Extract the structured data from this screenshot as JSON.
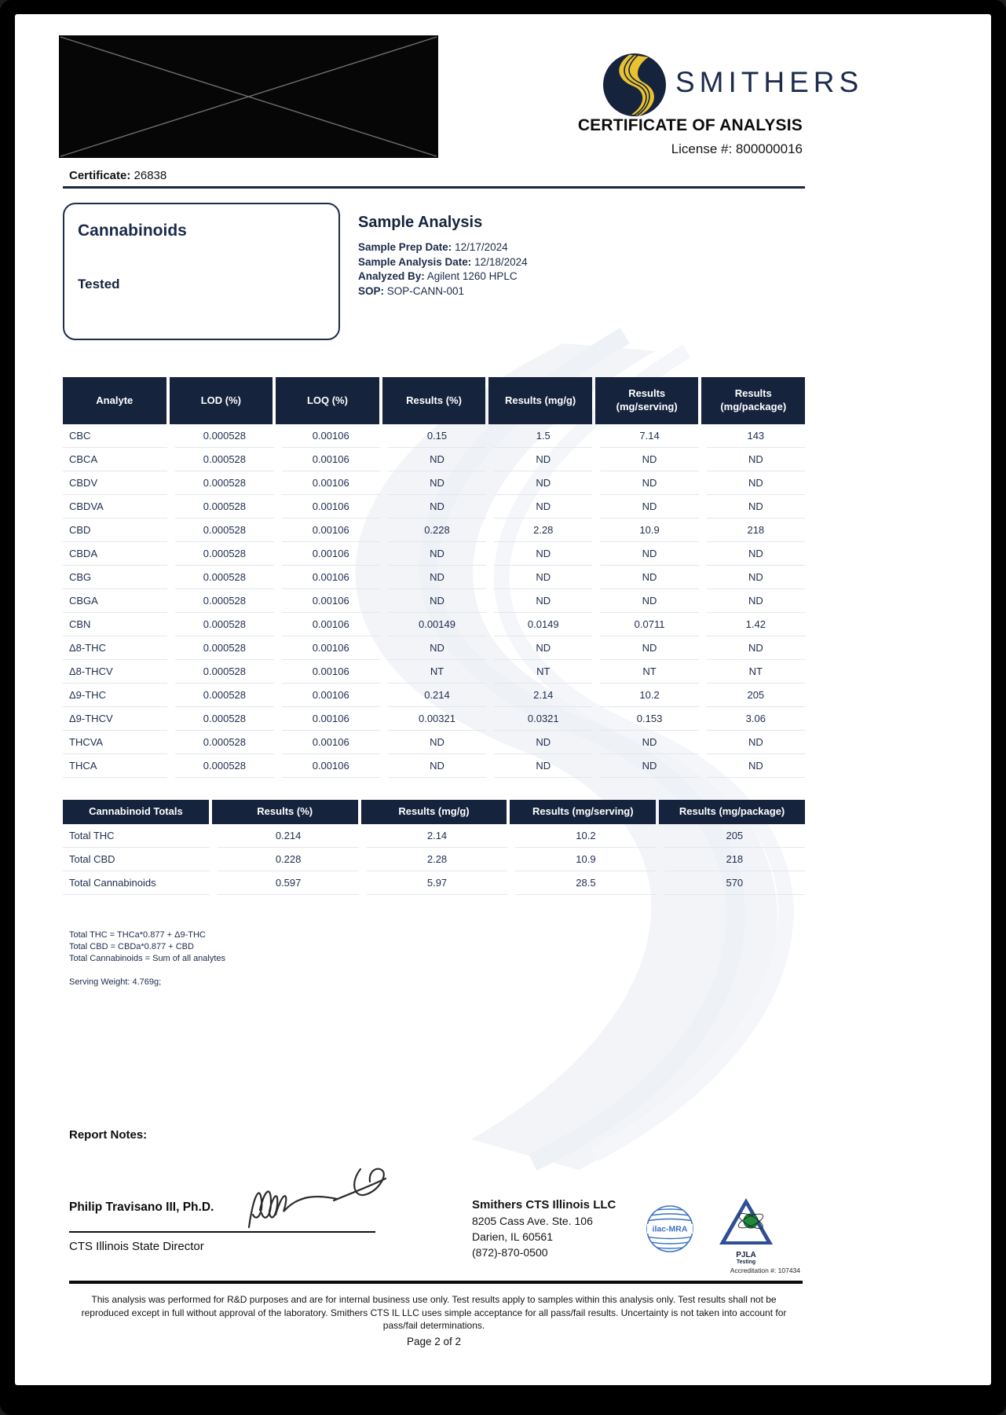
{
  "header": {
    "brand": "SMITHERS",
    "title": "CERTIFICATE OF ANALYSIS",
    "license": "License #: 800000016",
    "certificate_label": "Certificate:",
    "certificate_number": "26838"
  },
  "panel": {
    "title": "Cannabinoids",
    "status": "Tested"
  },
  "sample_analysis": {
    "title": "Sample Analysis",
    "fields": [
      {
        "label": "Sample Prep Date:",
        "value": "12/17/2024"
      },
      {
        "label": "Sample Analysis Date:",
        "value": "12/18/2024"
      },
      {
        "label": "Analyzed By:",
        "value": "Agilent 1260 HPLC"
      },
      {
        "label": "SOP:",
        "value": "SOP-CANN-001"
      }
    ]
  },
  "analytes_table": {
    "headers": [
      "Analyte",
      "LOD (%)",
      "LOQ (%)",
      "Results (%)",
      "Results (mg/g)",
      "Results (mg/serving)",
      "Results (mg/package)"
    ],
    "rows": [
      [
        "CBC",
        "0.000528",
        "0.00106",
        "0.15",
        "1.5",
        "7.14",
        "143"
      ],
      [
        "CBCA",
        "0.000528",
        "0.00106",
        "ND",
        "ND",
        "ND",
        "ND"
      ],
      [
        "CBDV",
        "0.000528",
        "0.00106",
        "ND",
        "ND",
        "ND",
        "ND"
      ],
      [
        "CBDVA",
        "0.000528",
        "0.00106",
        "ND",
        "ND",
        "ND",
        "ND"
      ],
      [
        "CBD",
        "0.000528",
        "0.00106",
        "0.228",
        "2.28",
        "10.9",
        "218"
      ],
      [
        "CBDA",
        "0.000528",
        "0.00106",
        "ND",
        "ND",
        "ND",
        "ND"
      ],
      [
        "CBG",
        "0.000528",
        "0.00106",
        "ND",
        "ND",
        "ND",
        "ND"
      ],
      [
        "CBGA",
        "0.000528",
        "0.00106",
        "ND",
        "ND",
        "ND",
        "ND"
      ],
      [
        "CBN",
        "0.000528",
        "0.00106",
        "0.00149",
        "0.0149",
        "0.0711",
        "1.42"
      ],
      [
        "Δ8-THC",
        "0.000528",
        "0.00106",
        "ND",
        "ND",
        "ND",
        "ND"
      ],
      [
        "Δ8-THCV",
        "0.000528",
        "0.00106",
        "NT",
        "NT",
        "NT",
        "NT"
      ],
      [
        "Δ9-THC",
        "0.000528",
        "0.00106",
        "0.214",
        "2.14",
        "10.2",
        "205"
      ],
      [
        "Δ9-THCV",
        "0.000528",
        "0.00106",
        "0.00321",
        "0.0321",
        "0.153",
        "3.06"
      ],
      [
        "THCVA",
        "0.000528",
        "0.00106",
        "ND",
        "ND",
        "ND",
        "ND"
      ],
      [
        "THCA",
        "0.000528",
        "0.00106",
        "ND",
        "ND",
        "ND",
        "ND"
      ]
    ]
  },
  "totals_table": {
    "headers": [
      "Cannabinoid Totals",
      "Results (%)",
      "Results (mg/g)",
      "Results (mg/serving)",
      "Results (mg/package)"
    ],
    "rows": [
      [
        "Total THC",
        "0.214",
        "2.14",
        "10.2",
        "205"
      ],
      [
        "Total CBD",
        "0.228",
        "2.28",
        "10.9",
        "218"
      ],
      [
        "Total Cannabinoids",
        "0.597",
        "5.97",
        "28.5",
        "570"
      ]
    ]
  },
  "footnotes": [
    "Total THC = THCa*0.877 + Δ9-THC",
    "Total CBD = CBDa*0.877 + CBD",
    "Total Cannabinoids = Sum of all analytes"
  ],
  "serving_weight": "Serving Weight: 4.769g;",
  "report_notes_label": "Report Notes:",
  "signatory": {
    "name": "Philip Travisano III, Ph.D.",
    "title": "CTS Illinois State Director"
  },
  "lab": {
    "name": "Smithers CTS Illinois LLC",
    "address1": "8205 Cass Ave. Ste. 106",
    "address2": "Darien, IL 60561",
    "phone": "(872)-870-0500"
  },
  "accreditation": {
    "ilac": "ilac-MRA",
    "pjla": "PJLA",
    "pjla_sub": "Testing",
    "number": "Accreditation #: 107434"
  },
  "disclaimer": "This analysis was performed for R&D purposes and are for internal business use only. Test results apply to samples within this analysis only. Test results shall not be reproduced except in full without approval of the laboratory. Smithers CTS IL LLC uses simple acceptance for all pass/fail results. Uncertainty is not taken into account for pass/fail determinations.",
  "page_number": "Page 2 of 2",
  "colors": {
    "navy": "#15233d",
    "gold": "#e9c231"
  }
}
